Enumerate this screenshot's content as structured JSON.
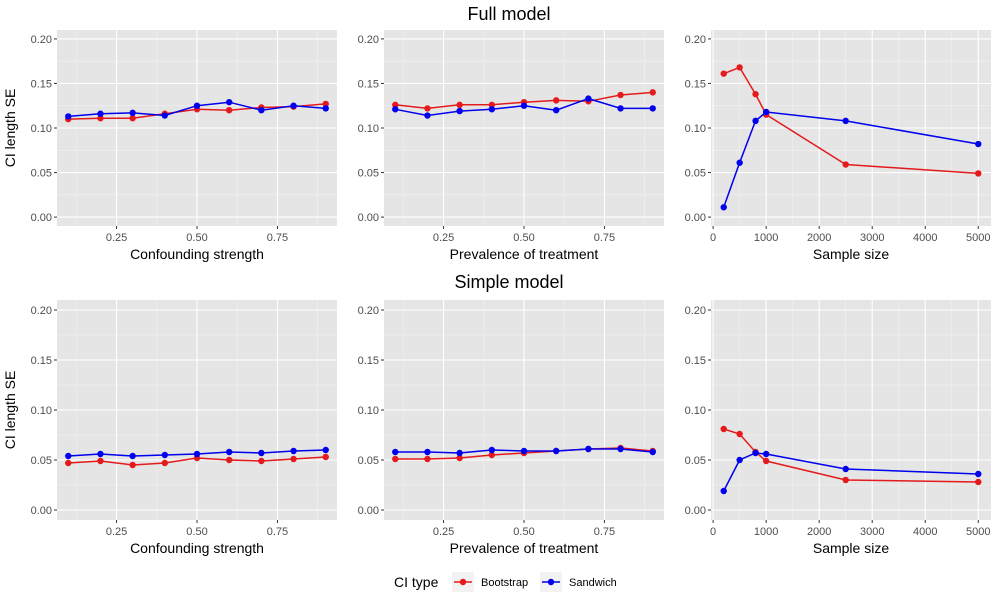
{
  "figure": {
    "row_titles": [
      "Full model",
      "Simple model"
    ],
    "legend": {
      "title": "CI type",
      "entries": [
        {
          "label": "Bootstrap",
          "color": "#e41a1c"
        },
        {
          "label": "Sandwich",
          "color": "#0000ee"
        }
      ]
    }
  },
  "chart_data": [
    {
      "type": "line",
      "row": 0,
      "col": 0,
      "xlabel": "Confounding strength",
      "ylabel": "CI length SE",
      "xlim": [
        0.065,
        0.935
      ],
      "ylim": [
        -0.01,
        0.21
      ],
      "xticks": [
        0.25,
        0.5,
        0.75
      ],
      "xtick_labels": [
        "0.25",
        "0.50",
        "0.75"
      ],
      "yticks": [
        0,
        0.05,
        0.1,
        0.15,
        0.2
      ],
      "ytick_labels": [
        "0.00",
        "0.05",
        "0.10",
        "0.15",
        "0.20"
      ],
      "x": [
        0.1,
        0.2,
        0.3,
        0.4,
        0.5,
        0.6,
        0.7,
        0.8,
        0.9
      ],
      "series": [
        {
          "name": "Bootstrap",
          "color": "#e41a1c",
          "values": [
            0.11,
            0.111,
            0.111,
            0.116,
            0.121,
            0.12,
            0.123,
            0.124,
            0.127
          ]
        },
        {
          "name": "Sandwich",
          "color": "#0000ee",
          "values": [
            0.113,
            0.116,
            0.117,
            0.114,
            0.125,
            0.129,
            0.12,
            0.125,
            0.122
          ]
        }
      ]
    },
    {
      "type": "line",
      "row": 0,
      "col": 1,
      "xlabel": "Prevalence of treatment",
      "ylabel": "",
      "xlim": [
        0.065,
        0.935
      ],
      "ylim": [
        -0.01,
        0.21
      ],
      "xticks": [
        0.25,
        0.5,
        0.75
      ],
      "xtick_labels": [
        "0.25",
        "0.50",
        "0.75"
      ],
      "yticks": [
        0,
        0.05,
        0.1,
        0.15,
        0.2
      ],
      "ytick_labels": [
        "0.00",
        "0.05",
        "0.10",
        "0.15",
        "0.20"
      ],
      "x": [
        0.1,
        0.2,
        0.3,
        0.4,
        0.5,
        0.6,
        0.7,
        0.8,
        0.9
      ],
      "series": [
        {
          "name": "Bootstrap",
          "color": "#e41a1c",
          "values": [
            0.126,
            0.122,
            0.126,
            0.126,
            0.129,
            0.131,
            0.13,
            0.137,
            0.14
          ]
        },
        {
          "name": "Sandwich",
          "color": "#0000ee",
          "values": [
            0.121,
            0.114,
            0.119,
            0.121,
            0.125,
            0.12,
            0.133,
            0.122,
            0.122
          ]
        }
      ]
    },
    {
      "type": "line",
      "row": 0,
      "col": 2,
      "xlabel": "Sample size",
      "ylabel": "",
      "xlim": [
        -40,
        5240
      ],
      "ylim": [
        -0.01,
        0.21
      ],
      "xticks": [
        0,
        1000,
        2000,
        3000,
        4000,
        5000
      ],
      "xtick_labels": [
        "0",
        "1000",
        "2000",
        "3000",
        "4000",
        "5000"
      ],
      "yticks": [
        0,
        0.05,
        0.1,
        0.15,
        0.2
      ],
      "ytick_labels": [
        "0.00",
        "0.05",
        "0.10",
        "0.15",
        "0.20"
      ],
      "x": [
        200,
        500,
        800,
        1000,
        2500,
        5000
      ],
      "series": [
        {
          "name": "Bootstrap",
          "color": "#e41a1c",
          "values": [
            0.161,
            0.168,
            0.138,
            0.115,
            0.059,
            0.049
          ]
        },
        {
          "name": "Sandwich",
          "color": "#0000ee",
          "values": [
            0.011,
            0.061,
            0.108,
            0.118,
            0.108,
            0.082
          ]
        }
      ]
    },
    {
      "type": "line",
      "row": 1,
      "col": 0,
      "xlabel": "Confounding strength",
      "ylabel": "CI length SE",
      "xlim": [
        0.065,
        0.935
      ],
      "ylim": [
        -0.01,
        0.21
      ],
      "xticks": [
        0.25,
        0.5,
        0.75
      ],
      "xtick_labels": [
        "0.25",
        "0.50",
        "0.75"
      ],
      "yticks": [
        0,
        0.05,
        0.1,
        0.15,
        0.2
      ],
      "ytick_labels": [
        "0.00",
        "0.05",
        "0.10",
        "0.15",
        "0.20"
      ],
      "x": [
        0.1,
        0.2,
        0.3,
        0.4,
        0.5,
        0.6,
        0.7,
        0.8,
        0.9
      ],
      "series": [
        {
          "name": "Bootstrap",
          "color": "#e41a1c",
          "values": [
            0.047,
            0.049,
            0.045,
            0.047,
            0.052,
            0.05,
            0.049,
            0.051,
            0.053
          ]
        },
        {
          "name": "Sandwich",
          "color": "#0000ee",
          "values": [
            0.054,
            0.056,
            0.054,
            0.055,
            0.056,
            0.058,
            0.057,
            0.059,
            0.06
          ]
        }
      ]
    },
    {
      "type": "line",
      "row": 1,
      "col": 1,
      "xlabel": "Prevalence of treatment",
      "ylabel": "",
      "xlim": [
        0.065,
        0.935
      ],
      "ylim": [
        -0.01,
        0.21
      ],
      "xticks": [
        0.25,
        0.5,
        0.75
      ],
      "xtick_labels": [
        "0.25",
        "0.50",
        "0.75"
      ],
      "yticks": [
        0,
        0.05,
        0.1,
        0.15,
        0.2
      ],
      "ytick_labels": [
        "0.00",
        "0.05",
        "0.10",
        "0.15",
        "0.20"
      ],
      "x": [
        0.1,
        0.2,
        0.3,
        0.4,
        0.5,
        0.6,
        0.7,
        0.8,
        0.9
      ],
      "series": [
        {
          "name": "Bootstrap",
          "color": "#e41a1c",
          "values": [
            0.051,
            0.051,
            0.052,
            0.055,
            0.057,
            0.059,
            0.061,
            0.062,
            0.059
          ]
        },
        {
          "name": "Sandwich",
          "color": "#0000ee",
          "values": [
            0.058,
            0.058,
            0.057,
            0.06,
            0.059,
            0.059,
            0.061,
            0.061,
            0.058
          ]
        }
      ]
    },
    {
      "type": "line",
      "row": 1,
      "col": 2,
      "xlabel": "Sample size",
      "ylabel": "",
      "xlim": [
        -40,
        5240
      ],
      "ylim": [
        -0.01,
        0.21
      ],
      "xticks": [
        0,
        1000,
        2000,
        3000,
        4000,
        5000
      ],
      "xtick_labels": [
        "0",
        "1000",
        "2000",
        "3000",
        "4000",
        "5000"
      ],
      "yticks": [
        0,
        0.05,
        0.1,
        0.15,
        0.2
      ],
      "ytick_labels": [
        "0.00",
        "0.05",
        "0.10",
        "0.15",
        "0.20"
      ],
      "x": [
        200,
        500,
        800,
        1000,
        2500,
        5000
      ],
      "series": [
        {
          "name": "Bootstrap",
          "color": "#e41a1c",
          "values": [
            0.081,
            0.076,
            0.058,
            0.049,
            0.03,
            0.028
          ]
        },
        {
          "name": "Sandwich",
          "color": "#0000ee",
          "values": [
            0.019,
            0.05,
            0.057,
            0.056,
            0.041,
            0.036
          ]
        }
      ]
    }
  ]
}
